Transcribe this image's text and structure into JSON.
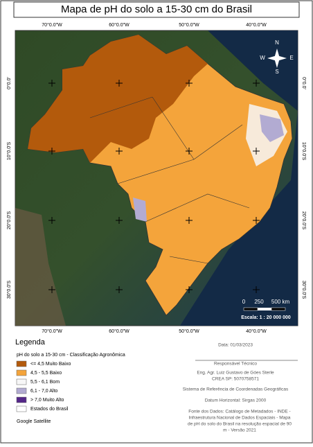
{
  "title": "Mapa de pH do solo a 15-30 cm do Brasil",
  "lon_labels": [
    "70°0.0\"W",
    "60°0.0\"W",
    "50°0.0\"W",
    "40°0.0\"W"
  ],
  "lat_labels": [
    "0°0.0'",
    "10°0.0'S",
    "20°0.0'S",
    "30°0.0'S"
  ],
  "compass": {
    "n": "N",
    "e": "E",
    "s": "S",
    "w": "W"
  },
  "scale": {
    "ticks": [
      "0",
      "250",
      "500 km"
    ],
    "text": "Escala: 1 : 20 000 000"
  },
  "legend": {
    "title": "Legenda",
    "subtitle": "pH do solo a 15-30 cm - Classificação Agronômica",
    "items": [
      {
        "label": "<= 4,5 Muito Baixo",
        "color": "#b35a0c"
      },
      {
        "label": "4,5 - 5,5 Baixo",
        "color": "#f4a43b"
      },
      {
        "label": "5,5 - 6,1 Bom",
        "color": "#f7f7f7"
      },
      {
        "label": "6,1 - 7,0 Alto",
        "color": "#b2abd2"
      },
      {
        "label": "> 7,0 Muito Alto",
        "color": "#542788"
      },
      {
        "label": "Estados do Brasil",
        "color": "#ffffff"
      }
    ],
    "basemap": "Google Satellite"
  },
  "info": {
    "date": "Data: 01/03/2023",
    "responsible": [
      "Responsável Técnico",
      "Eng. Agr. Luiz Gustavo de Góes Sterle",
      "CREA SP: 5070758571"
    ],
    "crs": "Sistema de Referência de Coordenadas Geográficas",
    "datum": "Datum Horizontal: Sirgas 2000",
    "source": [
      "Fonte dos Dados:  Catálogo de Metadados - INDE -",
      "Infraestrutura Nacional de Dados Espaciais - Mapa",
      "de  pH do solo do Brasil na resolução espacial de 90",
      "m - Versão 2021"
    ]
  }
}
